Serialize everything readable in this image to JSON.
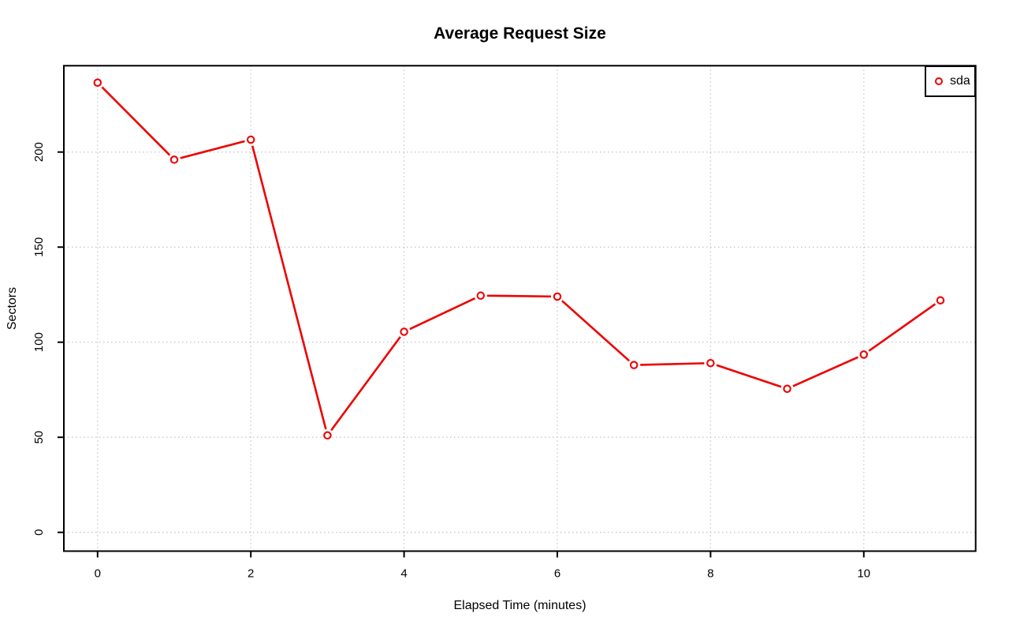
{
  "chart_data": {
    "type": "line",
    "title": "Average Request Size",
    "xlabel": "Elapsed Time (minutes)",
    "ylabel": "Sectors",
    "x": [
      0,
      1,
      2,
      3,
      4,
      5,
      6,
      7,
      8,
      9,
      10,
      11
    ],
    "series": [
      {
        "name": "sda",
        "color": "#ee0000",
        "marker": "open-circle",
        "values": [
          236.5,
          196,
          206.5,
          51,
          105.5,
          124.5,
          124,
          88,
          89,
          75.5,
          93.5,
          122
        ]
      }
    ],
    "x_ticks": [
      0,
      2,
      4,
      6,
      8,
      10
    ],
    "y_ticks": [
      0,
      50,
      100,
      150,
      200
    ],
    "xlim": [
      -0.45,
      11.45
    ],
    "ylim": [
      -10,
      245.5
    ],
    "grid": "dotted",
    "grid_color": "#c8c8c8",
    "axis_color": "#000000",
    "background": "#ffffff",
    "legend_position": "top-right",
    "legend_entries": [
      "sda"
    ]
  }
}
